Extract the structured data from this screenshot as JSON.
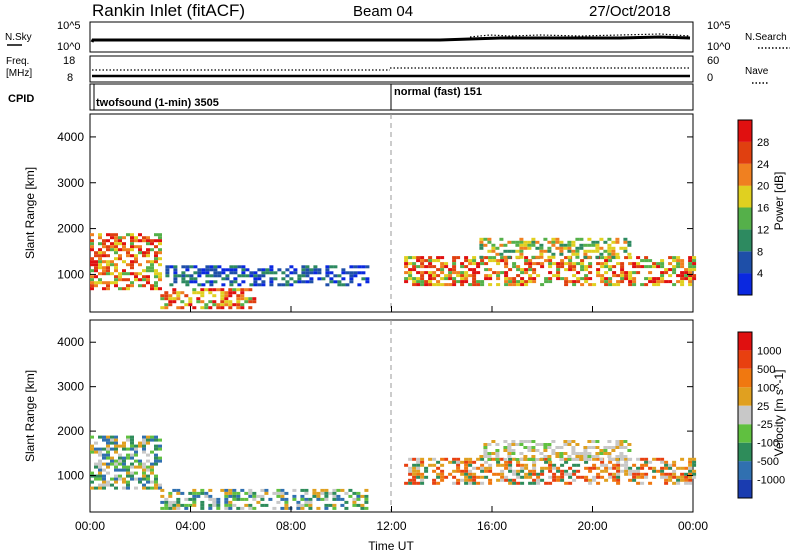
{
  "header": {
    "station": "Rankin Inlet (fitACF)",
    "beam": "Beam 04",
    "date": "27/Oct/2018"
  },
  "noise_strip": {
    "left_label": "N.Sky",
    "right_label": "N.Search",
    "left_ticks": [
      "10^5",
      "10^0"
    ],
    "right_ticks": [
      "10^5",
      "10^0"
    ]
  },
  "freq_strip": {
    "left_label_line1": "Freq.",
    "left_label_line2": "[MHz]",
    "right_label": "Nave",
    "left_ticks": [
      "18",
      "8"
    ],
    "right_ticks": [
      "60",
      "0"
    ]
  },
  "cpid": {
    "label": "CPID",
    "segments": [
      "twofsound (1-min) 3505",
      "normal (fast) 151"
    ]
  },
  "x_axis": {
    "label": "Time UT",
    "ticks": [
      "00:00",
      "04:00",
      "08:00",
      "12:00",
      "16:00",
      "20:00",
      "00:00"
    ]
  },
  "chart_data": [
    {
      "type": "heatmap",
      "ylabel": "Slant Range [km]",
      "yticks": [
        "4000",
        "3000",
        "2000",
        "1000"
      ],
      "ylim": [
        180,
        4500
      ],
      "xlim_hours": [
        0,
        24
      ],
      "colorbar": {
        "label": "Power [dB]",
        "ticks": [
          "28",
          "24",
          "20",
          "16",
          "12",
          "8",
          "4"
        ],
        "colors": [
          "#0a28e0",
          "#1e4fa8",
          "#2d8a60",
          "#55b04a",
          "#e0d020",
          "#f08020",
          "#e04010",
          "#e01010"
        ]
      },
      "echo_bands": [
        {
          "hours": [
            0,
            2.8
          ],
          "range_km": [
            700,
            1900
          ],
          "level": "high"
        },
        {
          "hours": [
            2.8,
            6.5
          ],
          "range_km": [
            250,
            700
          ],
          "level": "high"
        },
        {
          "hours": [
            12.5,
            24
          ],
          "range_km": [
            800,
            1400
          ],
          "level": "high"
        },
        {
          "hours": [
            15.5,
            21.5
          ],
          "range_km": [
            1350,
            1800
          ],
          "level": "medium"
        },
        {
          "hours": [
            3,
            11
          ],
          "range_km": [
            800,
            1200
          ],
          "level": "low"
        }
      ]
    },
    {
      "type": "heatmap",
      "ylabel": "Slant Range [km]",
      "yticks": [
        "4000",
        "3000",
        "2000",
        "1000"
      ],
      "ylim": [
        180,
        4500
      ],
      "xlim_hours": [
        0,
        24
      ],
      "colorbar": {
        "label": "Velocity [m s^-1]",
        "ticks": [
          "1000",
          "500",
          "100",
          "25",
          "-25",
          "-100",
          "-500",
          "-1000"
        ],
        "colors": [
          "#1a3cb0",
          "#3070b0",
          "#2e8c5a",
          "#60c040",
          "#c8c8c8",
          "#e0a020",
          "#f07810",
          "#e84010",
          "#e01010"
        ]
      },
      "echo_bands": [
        {
          "hours": [
            0,
            2.8
          ],
          "range_km": [
            700,
            1900
          ],
          "level": "green"
        },
        {
          "hours": [
            2.8,
            11
          ],
          "range_km": [
            250,
            700
          ],
          "level": "green"
        },
        {
          "hours": [
            12.5,
            24
          ],
          "range_km": [
            800,
            1400
          ],
          "level": "orange"
        },
        {
          "hours": [
            15.5,
            21.5
          ],
          "range_km": [
            1350,
            1800
          ],
          "level": "grey"
        }
      ]
    }
  ]
}
